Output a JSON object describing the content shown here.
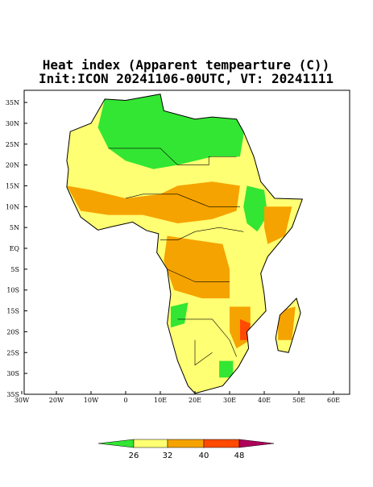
{
  "title": {
    "line1": "Heat index (Apparent tempearture (C))",
    "line2": "Init:ICON 20241106-00UTC, VT: 20241111"
  },
  "lat_labels": [
    "35N",
    "30N",
    "25N",
    "20N",
    "15N",
    "10N",
    "5N",
    "EQ",
    "5S",
    "10S",
    "15S",
    "20S",
    "25S",
    "30S",
    "35S"
  ],
  "lon_labels": [
    "30W",
    "20W",
    "10W",
    "0",
    "10E",
    "20E",
    "30E",
    "40E",
    "50E",
    "60E"
  ],
  "colorbar": {
    "labels": [
      26,
      32,
      40,
      48
    ],
    "colors": [
      "#33e633",
      "#ffff73",
      "#f5a300",
      "#ff4a00",
      "#b0005a"
    ]
  }
}
